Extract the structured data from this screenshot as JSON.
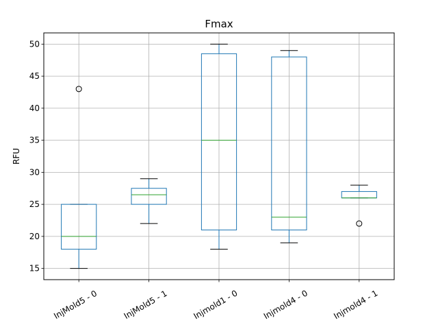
{
  "chart_data": {
    "type": "box",
    "title": "Fmax",
    "xlabel": "",
    "ylabel": "RFU",
    "ylim": [
      13.25,
      51.75
    ],
    "yticks": [
      15,
      20,
      25,
      30,
      35,
      40,
      45,
      50
    ],
    "grid": true,
    "categories": [
      "InjMold5 - 0",
      "InjMold5 - 1",
      "Injmold1 - 0",
      "Injmold4 - 0",
      "Injmold4 - 1"
    ],
    "boxes": [
      {
        "category": "InjMold5 - 0",
        "whisker_low": 15,
        "q1": 18,
        "median": 20,
        "q3": 25,
        "whisker_high": 25,
        "outliers": [
          43
        ]
      },
      {
        "category": "InjMold5 - 1",
        "whisker_low": 22,
        "q1": 25,
        "median": 26.5,
        "q3": 27.5,
        "whisker_high": 29,
        "outliers": []
      },
      {
        "category": "Injmold1 - 0",
        "whisker_low": 18,
        "q1": 21,
        "median": 35,
        "q3": 48.5,
        "whisker_high": 50,
        "outliers": []
      },
      {
        "category": "Injmold4 - 0",
        "whisker_low": 19,
        "q1": 21,
        "median": 23,
        "q3": 48,
        "whisker_high": 49,
        "outliers": []
      },
      {
        "category": "Injmold4 - 1",
        "whisker_low": 26,
        "q1": 26,
        "median": 26,
        "q3": 27,
        "whisker_high": 28,
        "outliers": [
          22
        ]
      }
    ],
    "colors": {
      "box": "#1f77b4",
      "median": "#2ca02c",
      "whisker": "#000000",
      "grid": "#b0b0b0",
      "flier": "#000000"
    }
  }
}
